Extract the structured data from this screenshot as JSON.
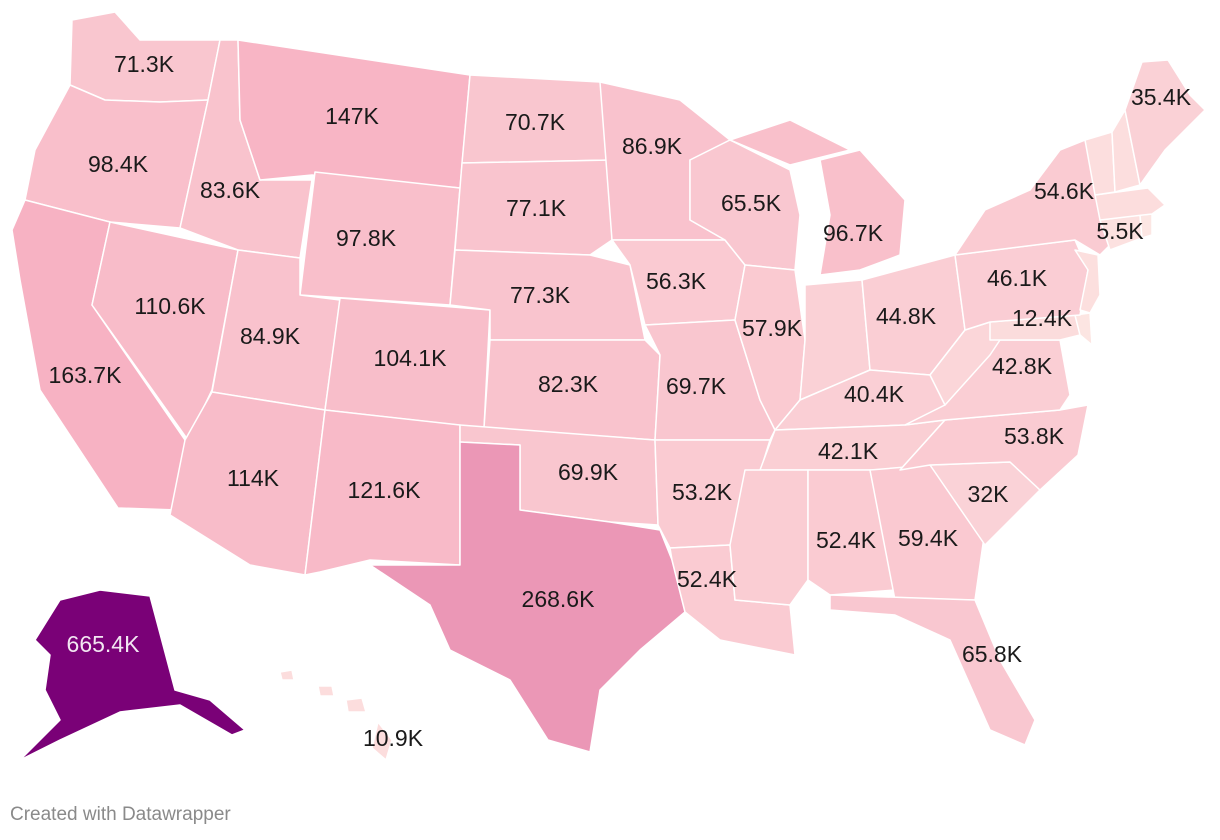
{
  "footer": {
    "credit": "Created with Datawrapper"
  },
  "scale": {
    "low": "#fdece6",
    "mid": "#f6a6bc",
    "high": "#7a0177",
    "max_value": 665400
  },
  "chart_data": {
    "type": "choropleth",
    "unit": "K",
    "regions": [
      {
        "id": "WA",
        "value": 71.3,
        "label": "71.3K"
      },
      {
        "id": "OR",
        "value": 98.4,
        "label": "98.4K"
      },
      {
        "id": "CA",
        "value": 163.7,
        "label": "163.7K"
      },
      {
        "id": "NV",
        "value": 110.6,
        "label": "110.6K"
      },
      {
        "id": "ID",
        "value": 83.6,
        "label": "83.6K"
      },
      {
        "id": "MT",
        "value": 147,
        "label": "147K"
      },
      {
        "id": "WY",
        "value": 97.8,
        "label": "97.8K"
      },
      {
        "id": "UT",
        "value": 84.9,
        "label": "84.9K"
      },
      {
        "id": "AZ",
        "value": 114,
        "label": "114K"
      },
      {
        "id": "CO",
        "value": 104.1,
        "label": "104.1K"
      },
      {
        "id": "NM",
        "value": 121.6,
        "label": "121.6K"
      },
      {
        "id": "ND",
        "value": 70.7,
        "label": "70.7K"
      },
      {
        "id": "SD",
        "value": 77.1,
        "label": "77.1K"
      },
      {
        "id": "NE",
        "value": 77.3,
        "label": "77.3K"
      },
      {
        "id": "KS",
        "value": 82.3,
        "label": "82.3K"
      },
      {
        "id": "OK",
        "value": 69.9,
        "label": "69.9K"
      },
      {
        "id": "TX",
        "value": 268.6,
        "label": "268.6K"
      },
      {
        "id": "MN",
        "value": 86.9,
        "label": "86.9K"
      },
      {
        "id": "IA",
        "value": 56.3,
        "label": "56.3K"
      },
      {
        "id": "MO",
        "value": 69.7,
        "label": "69.7K"
      },
      {
        "id": "AR",
        "value": 53.2,
        "label": "53.2K"
      },
      {
        "id": "LA",
        "value": 52.4,
        "label": "52.4K"
      },
      {
        "id": "WI",
        "value": 65.5,
        "label": "65.5K"
      },
      {
        "id": "IL",
        "value": 57.9,
        "label": "57.9K"
      },
      {
        "id": "MI",
        "value": 96.7,
        "label": "96.7K"
      },
      {
        "id": "IN",
        "value": 36.4,
        "label": ""
      },
      {
        "id": "OH",
        "value": 44.8,
        "label": "44.8K"
      },
      {
        "id": "KY",
        "value": 40.4,
        "label": "40.4K"
      },
      {
        "id": "TN",
        "value": 42.1,
        "label": "42.1K"
      },
      {
        "id": "MS",
        "value": 48.4,
        "label": ""
      },
      {
        "id": "AL",
        "value": 52.4,
        "label": "52.4K"
      },
      {
        "id": "GA",
        "value": 59.4,
        "label": "59.4K"
      },
      {
        "id": "FL",
        "value": 65.8,
        "label": "65.8K"
      },
      {
        "id": "SC",
        "value": 32,
        "label": "32K"
      },
      {
        "id": "NC",
        "value": 53.8,
        "label": "53.8K"
      },
      {
        "id": "VA",
        "value": 42.8,
        "label": "42.8K"
      },
      {
        "id": "WV",
        "value": 24.2,
        "label": ""
      },
      {
        "id": "MD",
        "value": 12.4,
        "label": "12.4K"
      },
      {
        "id": "DE",
        "value": 2.5,
        "label": ""
      },
      {
        "id": "NJ",
        "value": 8.7,
        "label": ""
      },
      {
        "id": "PA",
        "value": 46.1,
        "label": "46.1K"
      },
      {
        "id": "NY",
        "value": 54.6,
        "label": "54.6K"
      },
      {
        "id": "CT",
        "value": 5.5,
        "label": "5.5K"
      },
      {
        "id": "RI",
        "value": 1.5,
        "label": ""
      },
      {
        "id": "MA",
        "value": 10.5,
        "label": ""
      },
      {
        "id": "VT",
        "value": 9.6,
        "label": ""
      },
      {
        "id": "NH",
        "value": 9.3,
        "label": ""
      },
      {
        "id": "ME",
        "value": 35.4,
        "label": "35.4K"
      },
      {
        "id": "AK",
        "value": 665.4,
        "label": "665.4K"
      },
      {
        "id": "HI",
        "value": 10.9,
        "label": "10.9K"
      }
    ]
  }
}
